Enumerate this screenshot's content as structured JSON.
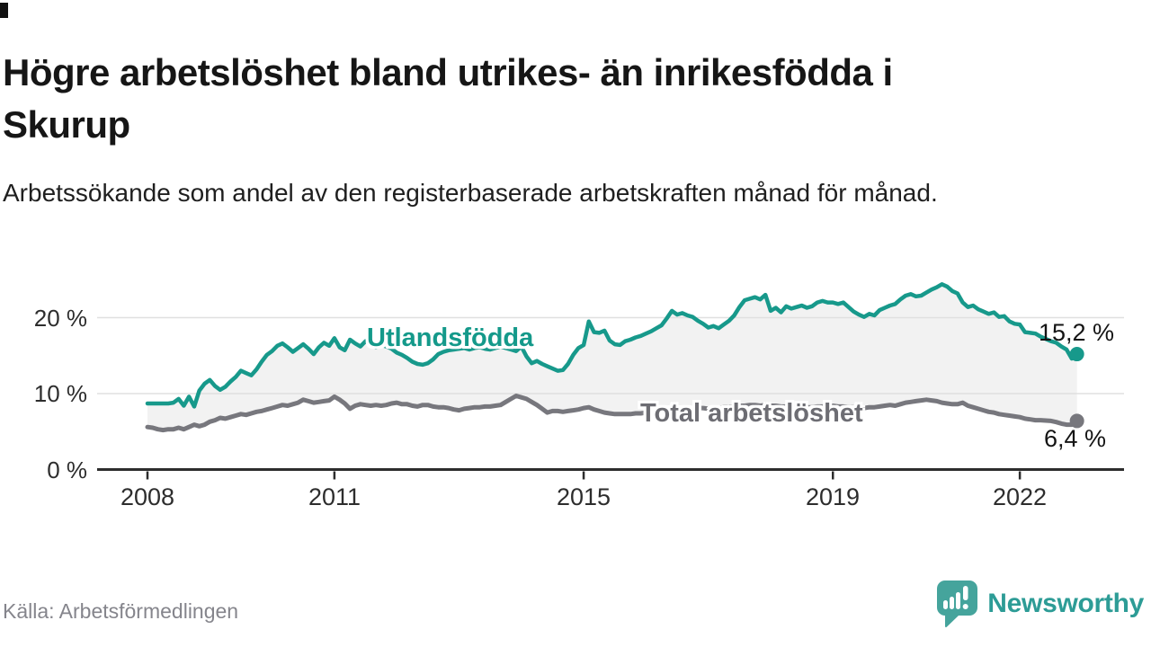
{
  "header": {
    "title": "Högre arbetslöshet bland utrikes- än inrikesfödda i Skurup",
    "subtitle": "Arbetssökande som andel av den registerbaserade arbetskraften månad för månad."
  },
  "footer": {
    "source": "Källa: Arbetsförmedlingen",
    "logo_text": "Newsworthy"
  },
  "colors": {
    "teal_line": "#17998b",
    "teal_label": "#14998a",
    "gray_line": "#77777d",
    "gray_label": "#6d6d73",
    "area_fill": "#f2f2f2",
    "gridline": "#e0e0e0",
    "axis": "#2d2d2d",
    "end_label_text": "#141414",
    "logo_teal": "#45a49c"
  },
  "chart_data": {
    "type": "line",
    "title": "Högre arbetslöshet bland utrikes- än inrikesfödda i Skurup",
    "xlabel": "",
    "ylabel": "",
    "ylim": [
      0,
      26
    ],
    "x_start_year": 2008,
    "points_per_month": 1,
    "grid": "horizontal",
    "legend_position": "inline-labels",
    "y_tick_values": [
      20,
      10,
      0
    ],
    "y_tick_labels": [
      "20 %",
      "10 %",
      "0 %"
    ],
    "x_tick_labels": [
      "2008",
      "2011",
      "2015",
      "2019",
      "2022"
    ],
    "x_tick_month_index": [
      0,
      36,
      84,
      132,
      168
    ],
    "end_labels": {
      "teal": "15,2 %",
      "gray": "6,4 %"
    },
    "end_values": {
      "teal": 15.2,
      "gray": 6.4
    },
    "series": [
      {
        "name": "Utlandsfödda",
        "color": "#17998b",
        "values": [
          8.7,
          8.7,
          8.7,
          8.7,
          8.7,
          8.8,
          9.3,
          8.4,
          9.6,
          8.3,
          10.4,
          11.3,
          11.8,
          11.0,
          10.5,
          10.9,
          11.6,
          12.2,
          13.0,
          12.7,
          12.4,
          13.2,
          14.2,
          15.1,
          15.6,
          16.3,
          16.6,
          16.1,
          15.5,
          16.0,
          16.5,
          15.9,
          15.2,
          16.1,
          16.7,
          16.3,
          17.3,
          16.1,
          15.7,
          17.1,
          16.6,
          16.2,
          16.9,
          16.5,
          16.1,
          16.4,
          16.2,
          15.9,
          15.4,
          15.1,
          14.7,
          14.2,
          13.9,
          13.8,
          14.0,
          14.5,
          15.2,
          15.5,
          15.7,
          15.8,
          15.9,
          16.0,
          15.8,
          16.0,
          16.1,
          15.9,
          15.8,
          16.0,
          16.2,
          16.0,
          15.8,
          15.6,
          16.2,
          14.9,
          14.0,
          14.3,
          13.9,
          13.6,
          13.3,
          13.0,
          13.1,
          13.9,
          15.1,
          16.0,
          16.4,
          19.5,
          18.1,
          18.0,
          18.3,
          17.0,
          16.5,
          16.4,
          16.9,
          17.1,
          17.4,
          17.6,
          17.9,
          18.2,
          18.6,
          19.0,
          19.9,
          20.9,
          20.4,
          20.6,
          20.3,
          20.1,
          19.6,
          19.2,
          18.7,
          18.9,
          18.6,
          19.1,
          19.6,
          20.3,
          21.4,
          22.3,
          22.5,
          22.7,
          22.4,
          23.0,
          20.9,
          21.3,
          20.7,
          21.5,
          21.2,
          21.4,
          21.6,
          21.3,
          21.5,
          22.0,
          22.2,
          22.0,
          22.0,
          21.8,
          22.0,
          21.4,
          20.8,
          20.4,
          20.1,
          20.5,
          20.3,
          21.0,
          21.3,
          21.6,
          21.8,
          22.4,
          22.9,
          23.1,
          22.8,
          22.9,
          23.3,
          23.7,
          24.0,
          24.4,
          24.1,
          23.5,
          23.2,
          22.0,
          21.4,
          21.6,
          21.1,
          20.8,
          20.5,
          20.7,
          20.1,
          20.2,
          19.5,
          19.2,
          19.1,
          18.1,
          18.0,
          17.9,
          17.5,
          17.2,
          16.9,
          16.7,
          16.2,
          15.8,
          14.6,
          15.2
        ]
      },
      {
        "name": "Total arbetslöshet",
        "color": "#77777d",
        "values": [
          5.6,
          5.5,
          5.3,
          5.2,
          5.3,
          5.3,
          5.5,
          5.3,
          5.6,
          5.9,
          5.7,
          5.9,
          6.3,
          6.5,
          6.8,
          6.7,
          6.9,
          7.1,
          7.3,
          7.2,
          7.4,
          7.6,
          7.7,
          7.9,
          8.1,
          8.3,
          8.5,
          8.4,
          8.6,
          8.8,
          9.2,
          9.0,
          8.8,
          8.9,
          9.0,
          9.1,
          9.6,
          9.2,
          8.7,
          8.0,
          8.4,
          8.6,
          8.5,
          8.4,
          8.5,
          8.4,
          8.5,
          8.7,
          8.8,
          8.6,
          8.6,
          8.4,
          8.3,
          8.5,
          8.5,
          8.3,
          8.2,
          8.2,
          8.1,
          7.9,
          7.8,
          8.0,
          8.1,
          8.2,
          8.2,
          8.3,
          8.3,
          8.4,
          8.5,
          8.9,
          9.3,
          9.7,
          9.5,
          9.3,
          8.9,
          8.5,
          8.0,
          7.5,
          7.7,
          7.7,
          7.6,
          7.7,
          7.8,
          7.9,
          8.1,
          8.2,
          7.9,
          7.7,
          7.5,
          7.4,
          7.3,
          7.3,
          7.3,
          7.3,
          7.4,
          7.4,
          7.5,
          7.6,
          7.7,
          7.8,
          7.9,
          8.0,
          7.9,
          7.9,
          8.0,
          8.0,
          8.1,
          8.1,
          8.0,
          8.1,
          8.1,
          8.2,
          8.2,
          8.3,
          8.4,
          8.4,
          8.5,
          8.5,
          8.4,
          8.5,
          8.4,
          8.4,
          8.3,
          8.3,
          8.2,
          8.2,
          8.3,
          8.2,
          8.2,
          8.3,
          8.3,
          8.4,
          8.4,
          8.3,
          8.3,
          8.2,
          8.2,
          8.1,
          8.1,
          8.2,
          8.2,
          8.3,
          8.4,
          8.5,
          8.4,
          8.6,
          8.8,
          8.9,
          9.0,
          9.1,
          9.2,
          9.1,
          9.0,
          8.8,
          8.7,
          8.6,
          8.6,
          8.8,
          8.4,
          8.2,
          8.0,
          7.8,
          7.6,
          7.5,
          7.3,
          7.2,
          7.1,
          7.0,
          6.9,
          6.7,
          6.6,
          6.5,
          6.5,
          6.45,
          6.4,
          6.25,
          6.05,
          5.9,
          5.9,
          6.4
        ]
      }
    ]
  }
}
